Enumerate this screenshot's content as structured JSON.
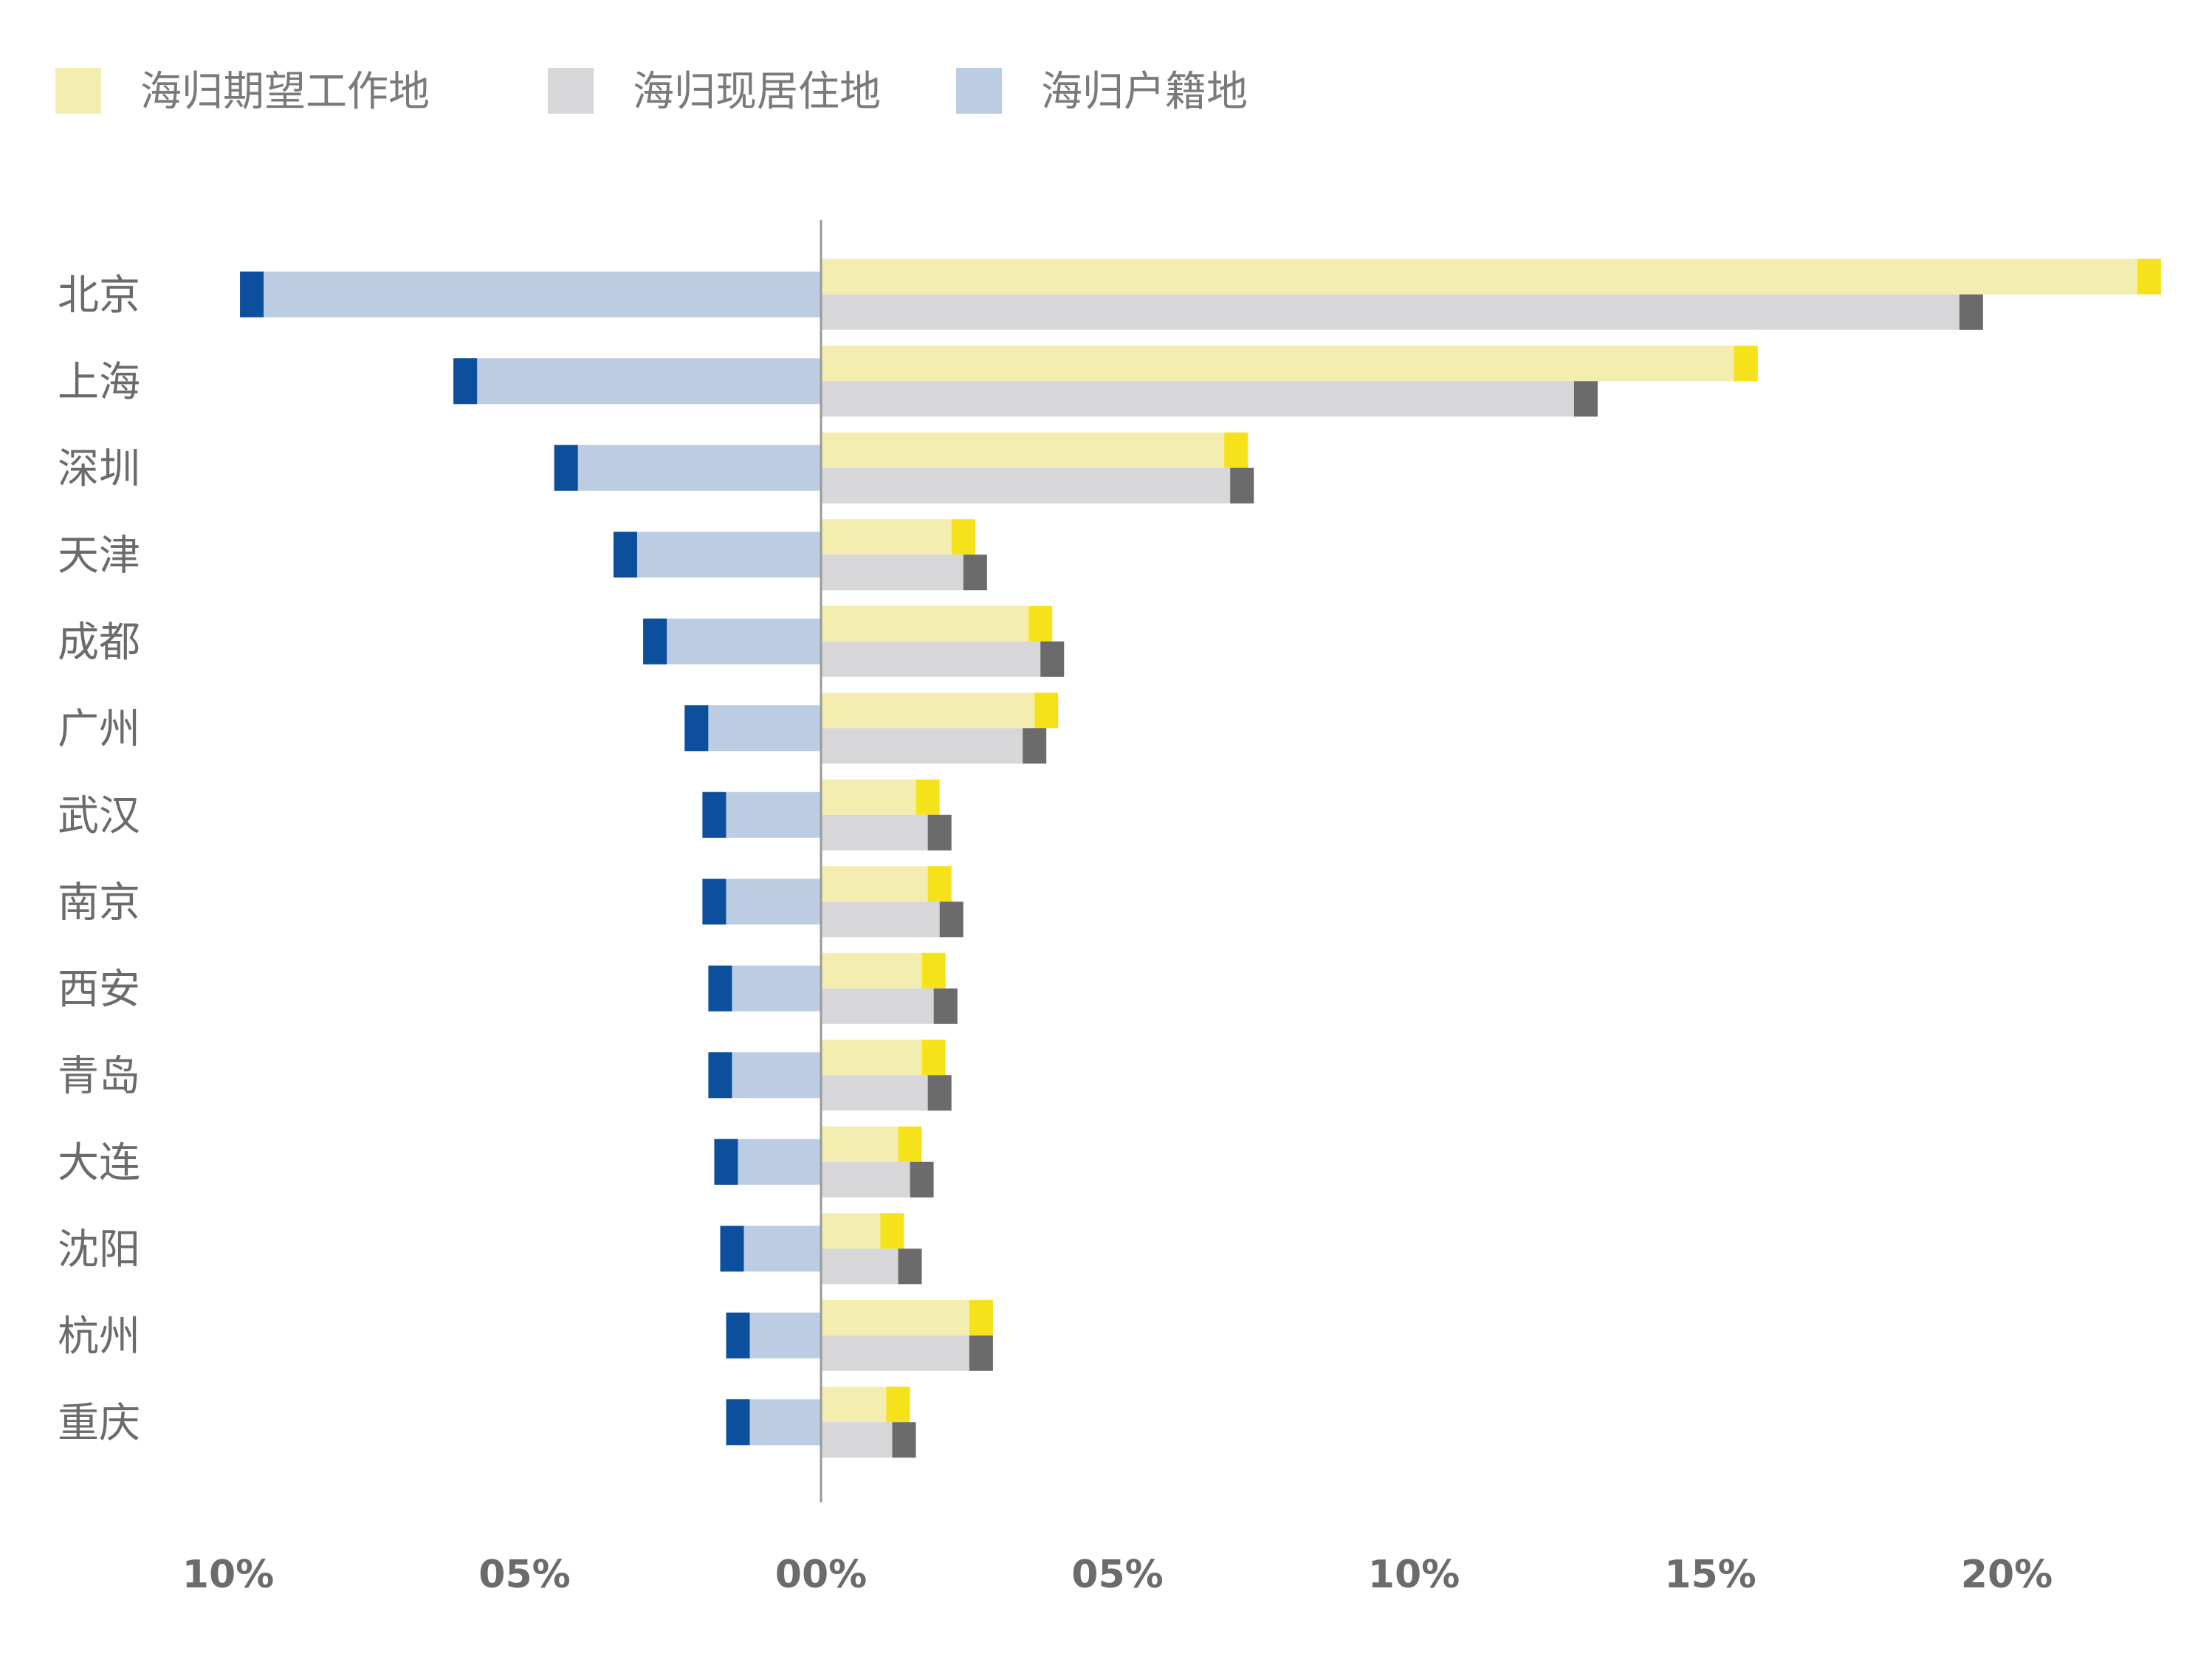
{
  "chart_data": {
    "type": "bar",
    "orientation": "horizontal",
    "layout": "diverging",
    "categories": [
      "北京",
      "上海",
      "深圳",
      "天津",
      "成都",
      "广州",
      "武汉",
      "南京",
      "西安",
      "青岛",
      "大连",
      "沈阳",
      "杭州",
      "重庆"
    ],
    "series": [
      {
        "name": "海归期望工作地",
        "side": "right",
        "color": "#f3eeaf",
        "cap_color": "#f6e21b",
        "values": [
          22.6,
          15.8,
          7.2,
          2.6,
          3.9,
          4.0,
          2.0,
          2.2,
          2.1,
          2.1,
          1.7,
          1.4,
          2.9,
          1.5
        ]
      },
      {
        "name": "海归现居住地",
        "side": "right",
        "color": "#d7d6d8",
        "cap_color": "#6b6b6b",
        "values": [
          19.6,
          13.1,
          7.3,
          2.8,
          4.1,
          3.8,
          2.2,
          2.4,
          2.3,
          2.2,
          1.9,
          1.7,
          2.9,
          1.6
        ]
      },
      {
        "name": "海归户籍地",
        "side": "left",
        "color": "#bccde3",
        "cap_color": "#0c4f9c",
        "values": [
          9.8,
          6.2,
          4.5,
          3.5,
          3.0,
          2.3,
          2.0,
          2.0,
          1.9,
          1.9,
          1.8,
          1.7,
          1.6,
          1.6
        ]
      }
    ],
    "x_ticks": [
      {
        "label": "10%",
        "value": -10
      },
      {
        "label": "05%",
        "value": -5
      },
      {
        "label": "00%",
        "value": 0
      },
      {
        "label": "05%",
        "value": 5
      },
      {
        "label": "10%",
        "value": 10
      },
      {
        "label": "15%",
        "value": 15
      },
      {
        "label": "20%",
        "value": 20
      }
    ],
    "xlim": [
      -10,
      22.8
    ],
    "legend_position": "top-left",
    "grid": false
  }
}
